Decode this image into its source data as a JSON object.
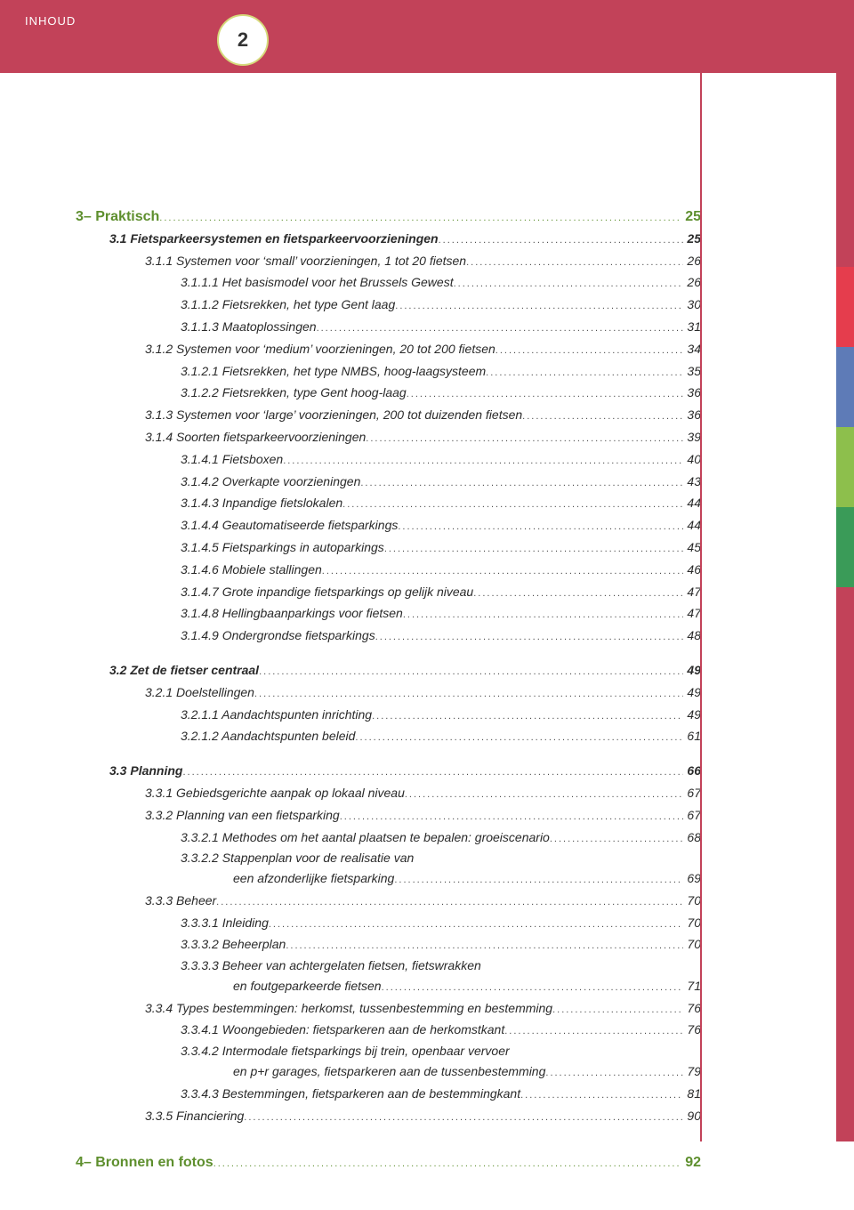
{
  "header": {
    "label": "INHOUD",
    "badge": "2"
  },
  "colors": {
    "brand_red": "#c24259",
    "accent_green": "#5e8f2e",
    "tab_red": "#e53d4d",
    "tab_blue": "#5e7bb7",
    "tab_lightgreen": "#8dbf4c",
    "tab_green": "#3a9b58"
  },
  "toc": [
    {
      "kind": "chapter",
      "indent": 0,
      "label": "3– Praktisch",
      "page": "25"
    },
    {
      "kind": "section",
      "indent": 1,
      "label": "3.1 Fietsparkeersystemen en fietsparkeervoorzieningen",
      "page": "25"
    },
    {
      "kind": "sub",
      "indent": 2,
      "label": "3.1.1 Systemen voor ‘small’ voorzieningen, 1 tot 20 fietsen",
      "page": "26"
    },
    {
      "kind": "subsub",
      "indent": 3,
      "label": "3.1.1.1 Het basismodel voor het Brussels Gewest",
      "page": "26"
    },
    {
      "kind": "subsub",
      "indent": 3,
      "label": "3.1.1.2 Fietsrekken, het type Gent laag",
      "page": "30"
    },
    {
      "kind": "subsub",
      "indent": 3,
      "label": "3.1.1.3 Maatoplossingen",
      "page": "31"
    },
    {
      "kind": "sub",
      "indent": 2,
      "label": "3.1.2 Systemen voor ‘medium’ voorzieningen, 20 tot 200 fietsen",
      "page": "34"
    },
    {
      "kind": "subsub",
      "indent": 3,
      "label": "3.1.2.1 Fietsrekken, het type NMBS, hoog-laagsysteem",
      "page": "35"
    },
    {
      "kind": "subsub",
      "indent": 3,
      "label": "3.1.2.2 Fietsrekken, type Gent hoog-laag",
      "page": "36"
    },
    {
      "kind": "sub",
      "indent": 2,
      "label": "3.1.3 Systemen voor ‘large’ voorzieningen, 200 tot duizenden fietsen",
      "page": "36"
    },
    {
      "kind": "sub",
      "indent": 2,
      "label": "3.1.4 Soorten fietsparkeervoorzieningen",
      "page": "39"
    },
    {
      "kind": "subsub",
      "indent": 3,
      "label": "3.1.4.1 Fietsboxen",
      "page": "40"
    },
    {
      "kind": "subsub",
      "indent": 3,
      "label": "3.1.4.2 Overkapte voorzieningen",
      "page": "43"
    },
    {
      "kind": "subsub",
      "indent": 3,
      "label": "3.1.4.3 Inpandige fietslokalen",
      "page": "44"
    },
    {
      "kind": "subsub",
      "indent": 3,
      "label": "3.1.4.4 Geautomatiseerde fietsparkings",
      "page": "44"
    },
    {
      "kind": "subsub",
      "indent": 3,
      "label": "3.1.4.5 Fietsparkings in autoparkings",
      "page": "45"
    },
    {
      "kind": "subsub",
      "indent": 3,
      "label": "3.1.4.6 Mobiele stallingen",
      "page": "46"
    },
    {
      "kind": "subsub",
      "indent": 3,
      "label": "3.1.4.7 Grote inpandige fietsparkings op gelijk niveau",
      "page": "47"
    },
    {
      "kind": "subsub",
      "indent": 3,
      "label": "3.1.4.8 Hellingbaanparkings voor fietsen",
      "page": "47"
    },
    {
      "kind": "subsub",
      "indent": 3,
      "label": "3.1.4.9 Ondergrondse fietsparkings",
      "page": "48"
    },
    {
      "kind": "spacer-md"
    },
    {
      "kind": "section",
      "indent": 1,
      "label": "3.2 Zet de fietser centraal",
      "page": "49"
    },
    {
      "kind": "sub",
      "indent": 2,
      "label": "3.2.1 Doelstellingen",
      "page": "49"
    },
    {
      "kind": "subsub",
      "indent": 3,
      "label": "3.2.1.1 Aandachtspunten inrichting",
      "page": "49"
    },
    {
      "kind": "subsub",
      "indent": 3,
      "label": "3.2.1.2 Aandachtspunten beleid",
      "page": "61"
    },
    {
      "kind": "spacer-md"
    },
    {
      "kind": "section",
      "indent": 1,
      "label": "3.3 Planning",
      "page": "66"
    },
    {
      "kind": "sub",
      "indent": 2,
      "label": "3.3.1 Gebiedsgerichte aanpak op lokaal niveau",
      "page": "67"
    },
    {
      "kind": "sub",
      "indent": 2,
      "label": "3.3.2 Planning van een fietsparking",
      "page": "67"
    },
    {
      "kind": "subsub",
      "indent": 3,
      "label": "3.3.2.1 Methodes om het aantal plaatsen te bepalen: groeiscenario",
      "page": "68"
    },
    {
      "kind": "cont",
      "indent": 3,
      "label_a": "3.3.2.2 Stappenplan voor de realisatie van",
      "label_b": "een afzonderlijke fietsparking",
      "cont_pad": "177px",
      "page": "69"
    },
    {
      "kind": "sub",
      "indent": 2,
      "label": "3.3.3 Beheer",
      "page": "70"
    },
    {
      "kind": "subsub",
      "indent": 3,
      "label": "3.3.3.1 Inleiding",
      "page": "70"
    },
    {
      "kind": "subsub",
      "indent": 3,
      "label": "3.3.3.2 Beheerplan",
      "page": "70"
    },
    {
      "kind": "cont",
      "indent": 3,
      "label_a": "3.3.3.3 Beheer van achtergelaten fietsen, fietswrakken",
      "label_b": "en foutgeparkeerde fietsen",
      "cont_pad": "177px",
      "page": "71"
    },
    {
      "kind": "sub",
      "indent": 2,
      "label": "3.3.4 Types bestemmingen: herkomst, tussenbestemming en bestemming",
      "page": "76"
    },
    {
      "kind": "subsub",
      "indent": 3,
      "label": "3.3.4.1 Woongebieden: fietsparkeren aan de herkomstkant",
      "page": "76"
    },
    {
      "kind": "cont",
      "indent": 3,
      "label_a": "3.3.4.2 Intermodale fietsparkings bij trein, openbaar vervoer",
      "label_b": "en p+r garages, fietsparkeren aan de tussenbestemming",
      "cont_pad": "177px",
      "page": "79"
    },
    {
      "kind": "subsub",
      "indent": 3,
      "label": "3.3.4.3 Bestemmingen, fietsparkeren aan de bestemmingkant",
      "page": "81"
    },
    {
      "kind": "sub",
      "indent": 2,
      "label": "3.3.5 Financiering",
      "page": "90"
    },
    {
      "kind": "spacer-md"
    },
    {
      "kind": "spacer-md"
    },
    {
      "kind": "chapter",
      "indent": 0,
      "label": "4– Bronnen en fotos",
      "page": "92"
    }
  ]
}
